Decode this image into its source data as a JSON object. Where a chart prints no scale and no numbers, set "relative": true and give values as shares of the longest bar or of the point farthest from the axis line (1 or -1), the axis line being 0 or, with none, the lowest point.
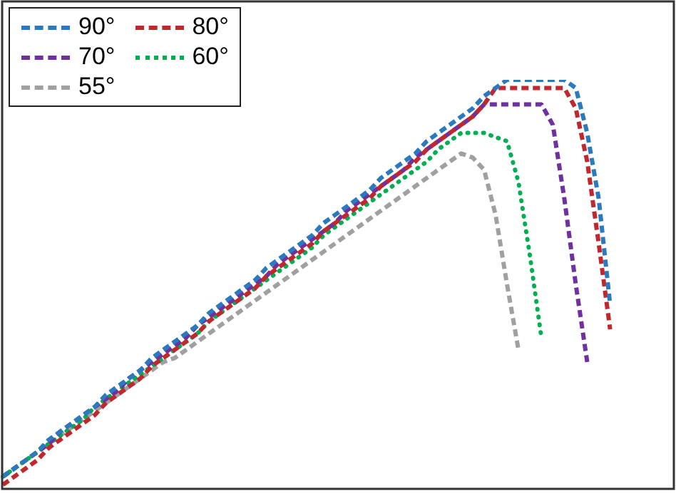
{
  "chart_data": {
    "type": "line",
    "relative": true,
    "legend": "top left",
    "marker": "none",
    "categories": [
      null,
      null,
      null,
      null,
      null,
      null,
      null,
      null,
      null,
      null,
      null,
      null,
      null,
      null,
      null,
      null,
      null,
      null,
      null,
      null,
      null,
      null,
      null,
      null,
      null,
      null,
      null,
      null,
      null,
      null,
      null,
      null,
      null,
      null,
      null,
      null,
      null,
      null,
      null,
      null,
      null,
      null,
      null,
      null,
      null,
      null,
      null,
      null,
      null,
      null,
      null,
      null,
      null,
      null,
      null,
      null,
      null,
      null,
      null
    ],
    "series": [
      {
        "name": "90°",
        "color": "#2a7ac0",
        "line_style": "dashed",
        "values": [
          0.03,
          0.05,
          0.07,
          0.09,
          0.12,
          0.14,
          0.16,
          0.18,
          0.2,
          0.23,
          0.25,
          0.27,
          0.29,
          0.32,
          0.34,
          0.36,
          0.38,
          0.4,
          0.43,
          0.45,
          0.47,
          0.49,
          0.51,
          0.54,
          0.56,
          0.58,
          0.6,
          0.62,
          0.65,
          0.67,
          0.69,
          0.71,
          0.73,
          0.76,
          0.78,
          0.8,
          0.82,
          0.85,
          0.87,
          0.89,
          0.91,
          0.93,
          0.96,
          0.98,
          1.0,
          1.0,
          1.0,
          1.0,
          1.0,
          1.0,
          0.98,
          0.87,
          0.71,
          0.45,
          null,
          null,
          null,
          null,
          null
        ]
      },
      {
        "name": "80°",
        "color": "#c0282d",
        "line_style": "dashed",
        "values": [
          0.01,
          0.03,
          0.05,
          0.07,
          0.1,
          0.12,
          0.14,
          0.16,
          0.18,
          0.21,
          0.23,
          0.25,
          0.27,
          0.3,
          0.32,
          0.34,
          0.36,
          0.38,
          0.41,
          0.43,
          0.45,
          0.47,
          0.49,
          0.52,
          0.54,
          0.56,
          0.58,
          0.6,
          0.63,
          0.65,
          0.67,
          0.69,
          0.71,
          0.74,
          0.76,
          0.78,
          0.8,
          0.83,
          0.85,
          0.87,
          0.89,
          0.91,
          0.94,
          0.98,
          0.98,
          0.98,
          0.98,
          0.98,
          0.98,
          0.98,
          0.93,
          0.8,
          0.6,
          0.39,
          null,
          null,
          null,
          null,
          null
        ]
      },
      {
        "name": "70°",
        "color": "#7030a0",
        "line_style": "dashed",
        "values": [
          0.03,
          0.05,
          0.07,
          0.09,
          0.11,
          0.14,
          0.16,
          0.18,
          0.2,
          0.22,
          0.24,
          0.27,
          0.29,
          0.31,
          0.33,
          0.35,
          0.37,
          0.4,
          0.42,
          0.44,
          0.46,
          0.48,
          0.5,
          0.52,
          0.55,
          0.57,
          0.59,
          0.61,
          0.63,
          0.65,
          0.68,
          0.7,
          0.72,
          0.74,
          0.76,
          0.78,
          0.81,
          0.83,
          0.85,
          0.87,
          0.89,
          0.91,
          0.94,
          0.94,
          0.94,
          0.94,
          0.94,
          0.94,
          0.89,
          0.71,
          0.5,
          0.31,
          null,
          null,
          null,
          null,
          null,
          null,
          null
        ]
      },
      {
        "name": "60°",
        "color": "#00b050",
        "line_style": "dotted",
        "values": [
          0.03,
          0.05,
          0.07,
          0.09,
          0.11,
          0.13,
          0.15,
          0.17,
          0.2,
          0.22,
          0.24,
          0.26,
          0.28,
          0.3,
          0.32,
          0.34,
          0.36,
          0.38,
          0.41,
          0.43,
          0.45,
          0.47,
          0.49,
          0.51,
          0.53,
          0.55,
          0.57,
          0.59,
          0.62,
          0.64,
          0.66,
          0.68,
          0.7,
          0.72,
          0.74,
          0.76,
          0.78,
          0.8,
          0.83,
          0.85,
          0.87,
          0.87,
          0.87,
          0.86,
          0.85,
          0.75,
          0.57,
          0.37,
          null,
          null,
          null,
          null,
          null,
          null,
          null,
          null,
          null,
          null,
          null
        ]
      },
      {
        "name": "55°",
        "color": "#a0a0a0",
        "line_style": "dashed",
        "values": [
          0.03,
          0.05,
          0.07,
          0.09,
          0.11,
          0.13,
          0.15,
          0.17,
          0.19,
          0.21,
          0.23,
          0.25,
          0.27,
          0.29,
          0.31,
          0.32,
          0.34,
          0.36,
          0.38,
          0.4,
          0.42,
          0.44,
          0.46,
          0.48,
          0.5,
          0.52,
          0.54,
          0.56,
          0.58,
          0.6,
          0.62,
          0.64,
          0.66,
          0.68,
          0.7,
          0.72,
          0.74,
          0.76,
          0.78,
          0.8,
          0.82,
          0.81,
          0.78,
          0.67,
          0.5,
          0.34,
          null,
          null,
          null,
          null,
          null,
          null,
          null,
          null,
          null,
          null,
          null,
          null,
          null
        ]
      }
    ]
  }
}
